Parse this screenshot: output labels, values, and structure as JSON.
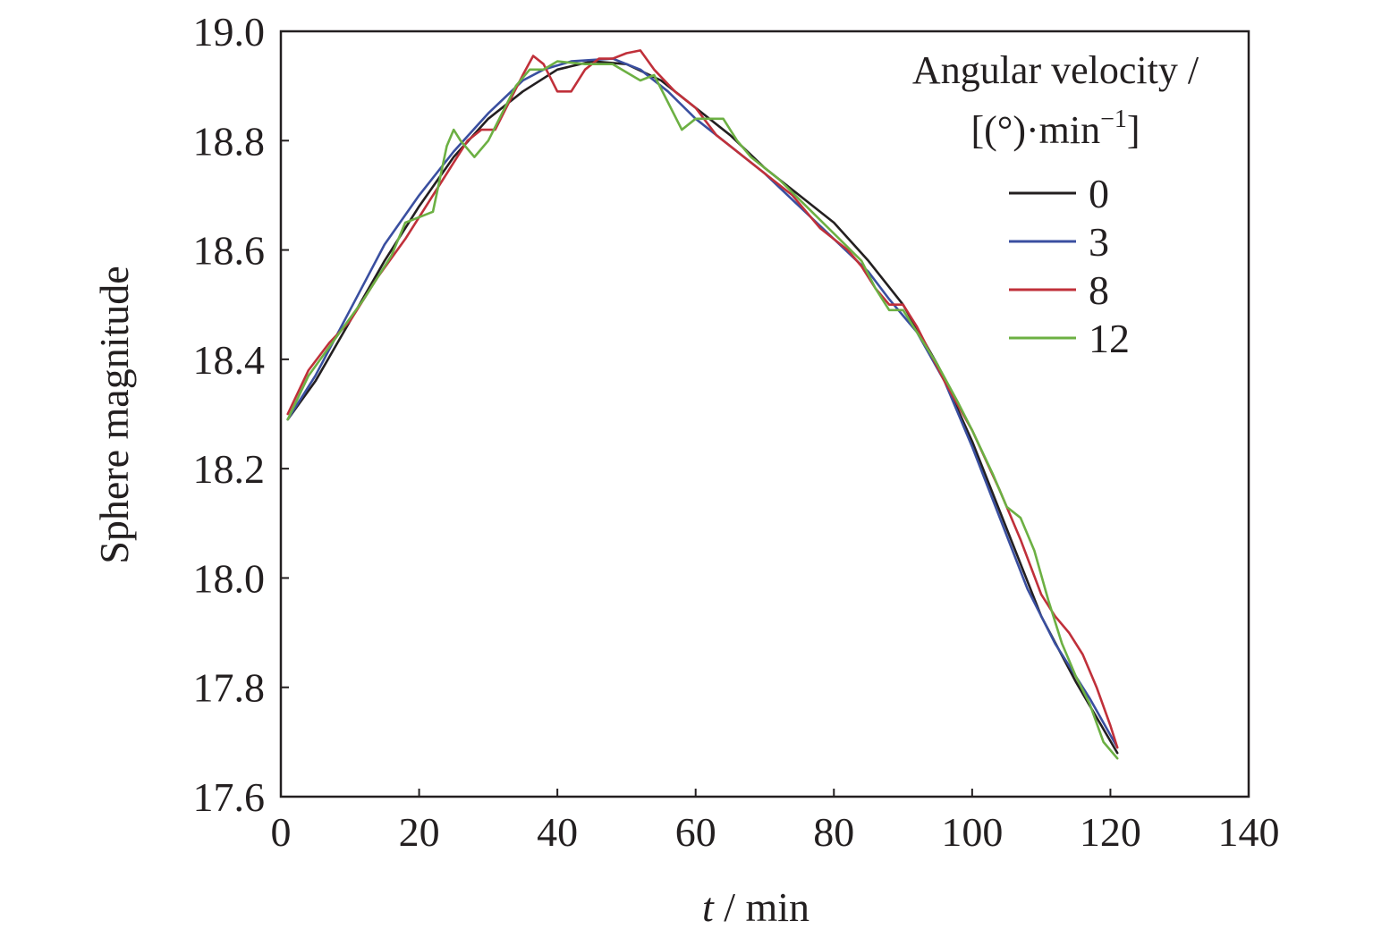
{
  "chart_data": {
    "type": "line",
    "xlabel_var": "t",
    "xlabel_unit": " / min",
    "ylabel": "Sphere magnitude",
    "xlim": [
      0,
      140
    ],
    "ylim": [
      17.6,
      19.0
    ],
    "xticks": [
      "0",
      "20",
      "40",
      "60",
      "80",
      "100",
      "120",
      "140"
    ],
    "yticks": [
      "17.6",
      "17.8",
      "18.0",
      "18.2",
      "18.4",
      "18.6",
      "18.8",
      "19.0"
    ],
    "grid": false,
    "legend": {
      "placement": "top-right",
      "title_line1": "Angular velocity /",
      "title_line2_prefix": "[(°)·min",
      "title_line2_sup": "−1",
      "title_line2_suffix": "]"
    },
    "series": [
      {
        "name": "0",
        "color": "#231f20",
        "points": [
          [
            1,
            18.29
          ],
          [
            5,
            18.36
          ],
          [
            10,
            18.47
          ],
          [
            15,
            18.58
          ],
          [
            20,
            18.68
          ],
          [
            25,
            18.77
          ],
          [
            30,
            18.84
          ],
          [
            35,
            18.89
          ],
          [
            40,
            18.93
          ],
          [
            45,
            18.945
          ],
          [
            50,
            18.94
          ],
          [
            55,
            18.91
          ],
          [
            60,
            18.86
          ],
          [
            65,
            18.81
          ],
          [
            70,
            18.75
          ],
          [
            75,
            18.7
          ],
          [
            80,
            18.65
          ],
          [
            85,
            18.58
          ],
          [
            90,
            18.5
          ],
          [
            95,
            18.39
          ],
          [
            100,
            18.25
          ],
          [
            105,
            18.09
          ],
          [
            110,
            17.93
          ],
          [
            115,
            17.81
          ],
          [
            121,
            17.68
          ]
        ]
      },
      {
        "name": "3",
        "color": "#3a4fa0",
        "points": [
          [
            1,
            18.29
          ],
          [
            5,
            18.37
          ],
          [
            10,
            18.49
          ],
          [
            15,
            18.61
          ],
          [
            20,
            18.7
          ],
          [
            25,
            18.78
          ],
          [
            30,
            18.85
          ],
          [
            35,
            18.91
          ],
          [
            38,
            18.93
          ],
          [
            42,
            18.945
          ],
          [
            48,
            18.95
          ],
          [
            52,
            18.93
          ],
          [
            56,
            18.89
          ],
          [
            60,
            18.84
          ],
          [
            65,
            18.79
          ],
          [
            70,
            18.74
          ],
          [
            75,
            18.68
          ],
          [
            80,
            18.62
          ],
          [
            85,
            18.56
          ],
          [
            88,
            18.51
          ],
          [
            92,
            18.45
          ],
          [
            96,
            18.36
          ],
          [
            100,
            18.24
          ],
          [
            104,
            18.11
          ],
          [
            108,
            17.98
          ],
          [
            112,
            17.88
          ],
          [
            117,
            17.78
          ],
          [
            121,
            17.69
          ]
        ]
      },
      {
        "name": "8",
        "color": "#c0303a",
        "points": [
          [
            1,
            18.3
          ],
          [
            4,
            18.38
          ],
          [
            7,
            18.43
          ],
          [
            10,
            18.47
          ],
          [
            14,
            18.55
          ],
          [
            18,
            18.62
          ],
          [
            21,
            18.68
          ],
          [
            24,
            18.74
          ],
          [
            27,
            18.8
          ],
          [
            29,
            18.82
          ],
          [
            31,
            18.82
          ],
          [
            33,
            18.87
          ],
          [
            35,
            18.92
          ],
          [
            36.5,
            18.955
          ],
          [
            38,
            18.94
          ],
          [
            40,
            18.89
          ],
          [
            42,
            18.89
          ],
          [
            44,
            18.93
          ],
          [
            46,
            18.95
          ],
          [
            48,
            18.95
          ],
          [
            50,
            18.96
          ],
          [
            52,
            18.965
          ],
          [
            54,
            18.93
          ],
          [
            57,
            18.89
          ],
          [
            60,
            18.86
          ],
          [
            63,
            18.81
          ],
          [
            66,
            18.78
          ],
          [
            70,
            18.74
          ],
          [
            74,
            18.7
          ],
          [
            78,
            18.64
          ],
          [
            82,
            18.6
          ],
          [
            84,
            18.57
          ],
          [
            86,
            18.53
          ],
          [
            88,
            18.5
          ],
          [
            90,
            18.5
          ],
          [
            92,
            18.46
          ],
          [
            96,
            18.36
          ],
          [
            100,
            18.27
          ],
          [
            104,
            18.16
          ],
          [
            107,
            18.07
          ],
          [
            110,
            17.97
          ],
          [
            112,
            17.93
          ],
          [
            114,
            17.9
          ],
          [
            116,
            17.86
          ],
          [
            118,
            17.8
          ],
          [
            120,
            17.73
          ],
          [
            121,
            17.69
          ]
        ]
      },
      {
        "name": "12",
        "color": "#6cb043",
        "points": [
          [
            1,
            18.29
          ],
          [
            4,
            18.37
          ],
          [
            8,
            18.44
          ],
          [
            12,
            18.51
          ],
          [
            16,
            18.59
          ],
          [
            18,
            18.65
          ],
          [
            20,
            18.66
          ],
          [
            22,
            18.67
          ],
          [
            24,
            18.79
          ],
          [
            25,
            18.82
          ],
          [
            26,
            18.8
          ],
          [
            28,
            18.77
          ],
          [
            30,
            18.8
          ],
          [
            32,
            18.85
          ],
          [
            34,
            18.9
          ],
          [
            36,
            18.93
          ],
          [
            38,
            18.93
          ],
          [
            40,
            18.945
          ],
          [
            44,
            18.94
          ],
          [
            48,
            18.94
          ],
          [
            50,
            18.925
          ],
          [
            52,
            18.91
          ],
          [
            54,
            18.92
          ],
          [
            56,
            18.87
          ],
          [
            58,
            18.82
          ],
          [
            60,
            18.84
          ],
          [
            62,
            18.84
          ],
          [
            64,
            18.84
          ],
          [
            66,
            18.8
          ],
          [
            68,
            18.77
          ],
          [
            72,
            18.73
          ],
          [
            76,
            18.68
          ],
          [
            80,
            18.63
          ],
          [
            84,
            18.58
          ],
          [
            86,
            18.53
          ],
          [
            88,
            18.49
          ],
          [
            90,
            18.49
          ],
          [
            92,
            18.45
          ],
          [
            95,
            18.39
          ],
          [
            98,
            18.32
          ],
          [
            100,
            18.27
          ],
          [
            103,
            18.19
          ],
          [
            105,
            18.13
          ],
          [
            107,
            18.11
          ],
          [
            109,
            18.05
          ],
          [
            111,
            17.96
          ],
          [
            113,
            17.88
          ],
          [
            115,
            17.82
          ],
          [
            117,
            17.77
          ],
          [
            119,
            17.7
          ],
          [
            121,
            17.67
          ]
        ]
      }
    ]
  }
}
